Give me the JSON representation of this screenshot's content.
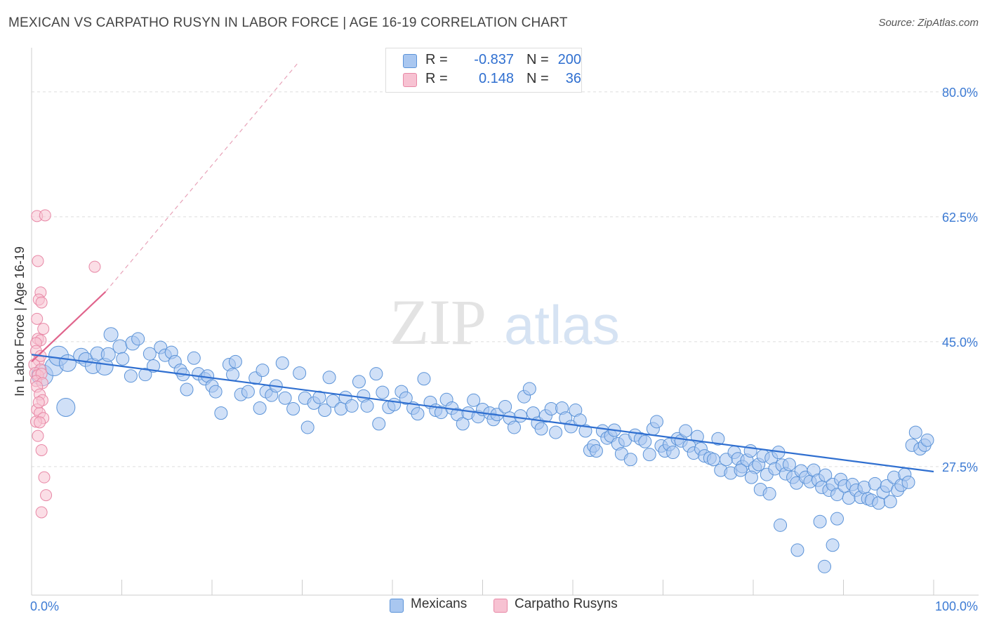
{
  "title": "MEXICAN VS CARPATHO RUSYN IN LABOR FORCE | AGE 16-19 CORRELATION CHART",
  "source": "Source: ZipAtlas.com",
  "watermark": {
    "zip": "ZIP",
    "atlas": "atlas"
  },
  "colors": {
    "blue_fill": "#a9c7f0",
    "blue_stroke": "#5b93d8",
    "blue_line": "#2f6fd0",
    "pink_fill": "#f7c2d2",
    "pink_stroke": "#e888a6",
    "pink_line": "#e0648c",
    "tick_label": "#3d7bd4",
    "grid": "#dddddd"
  },
  "legend_top": [
    {
      "swatch": "blue",
      "r_label": "R =",
      "r_value": "-0.837",
      "n_label": "N =",
      "n_value": "200"
    },
    {
      "swatch": "pink",
      "r_label": "R =",
      "r_value": "0.148",
      "n_label": "N =",
      "n_value": "36"
    }
  ],
  "legend_bottom": [
    {
      "swatch": "blue",
      "label": "Mexicans"
    },
    {
      "swatch": "pink",
      "label": "Carpatho Rusyns"
    }
  ],
  "chart_data": {
    "type": "scatter",
    "title": "MEXICAN VS CARPATHO RUSYN IN LABOR FORCE | AGE 16-19 CORRELATION CHART",
    "xlabel": "",
    "ylabel": "In Labor Force | Age 16-19",
    "xlim": [
      0,
      100
    ],
    "ylim": [
      9.5,
      85
    ],
    "y_ticks": [
      80.0,
      62.5,
      45.0,
      27.5
    ],
    "y_tick_labels": [
      "80.0%",
      "62.5%",
      "45.0%",
      "27.5%"
    ],
    "x_tick_labels": [
      "0.0%",
      "100.0%"
    ],
    "grid": true,
    "legend_placement": "top-center",
    "series": [
      {
        "name": "Mexicans",
        "color": "#a9c7f0",
        "r": -0.837,
        "n": 200,
        "trend": {
          "x": [
            0.0,
            100.0
          ],
          "y": [
            43.2,
            26.8
          ]
        },
        "points": [
          [
            1.2,
            40.3,
            15
          ],
          [
            2.5,
            41.5,
            13
          ],
          [
            3.0,
            43.0,
            14
          ],
          [
            4.0,
            42.0,
            12
          ],
          [
            3.8,
            35.8,
            13
          ],
          [
            5.5,
            43.0,
            11
          ],
          [
            6.0,
            42.5,
            10
          ],
          [
            6.8,
            41.6,
            11
          ],
          [
            7.3,
            43.3,
            10
          ],
          [
            8.1,
            41.5,
            12
          ],
          [
            8.5,
            43.2,
            10
          ],
          [
            8.8,
            46.0,
            10
          ],
          [
            9.8,
            44.3,
            10
          ],
          [
            10.1,
            42.6,
            9
          ],
          [
            11.2,
            44.8,
            10
          ],
          [
            11.0,
            40.2,
            9
          ],
          [
            11.8,
            45.4,
            9
          ],
          [
            12.6,
            40.4,
            9
          ],
          [
            13.1,
            43.3,
            9
          ],
          [
            13.5,
            41.6,
            9
          ],
          [
            14.3,
            44.2,
            9
          ],
          [
            14.8,
            43.1,
            9
          ],
          [
            15.5,
            43.5,
            9
          ],
          [
            15.9,
            42.2,
            9
          ],
          [
            16.5,
            41.0,
            9
          ],
          [
            16.8,
            40.4,
            9
          ],
          [
            17.2,
            38.3,
            9
          ],
          [
            18.0,
            42.7,
            9
          ],
          [
            18.5,
            40.5,
            9
          ],
          [
            19.2,
            39.8,
            9
          ],
          [
            19.5,
            40.2,
            9
          ],
          [
            20.0,
            38.8,
            9
          ],
          [
            20.4,
            38.0,
            9
          ],
          [
            21.0,
            35.0,
            9
          ],
          [
            21.9,
            41.8,
            9
          ],
          [
            22.6,
            42.2,
            9
          ],
          [
            22.3,
            40.4,
            9
          ],
          [
            23.2,
            37.6,
            9
          ],
          [
            24.0,
            38.0,
            9
          ],
          [
            24.8,
            39.9,
            9
          ],
          [
            25.3,
            35.7,
            9
          ],
          [
            25.6,
            41.0,
            9
          ],
          [
            26.0,
            38.0,
            9
          ],
          [
            26.6,
            37.5,
            9
          ],
          [
            27.1,
            38.8,
            9
          ],
          [
            27.8,
            42.0,
            9
          ],
          [
            28.1,
            37.1,
            9
          ],
          [
            29.0,
            35.6,
            9
          ],
          [
            29.7,
            40.6,
            9
          ],
          [
            30.3,
            37.1,
            9
          ],
          [
            30.6,
            33.0,
            9
          ],
          [
            31.3,
            36.4,
            9
          ],
          [
            31.9,
            37.2,
            9
          ],
          [
            32.5,
            35.4,
            9
          ],
          [
            33.0,
            40.0,
            9
          ],
          [
            33.4,
            36.7,
            9
          ],
          [
            34.3,
            35.6,
            9
          ],
          [
            34.8,
            37.2,
            9
          ],
          [
            35.5,
            36.0,
            9
          ],
          [
            36.3,
            39.4,
            9
          ],
          [
            36.8,
            37.4,
            9
          ],
          [
            37.2,
            36.0,
            9
          ],
          [
            38.2,
            40.5,
            9
          ],
          [
            38.9,
            37.9,
            9
          ],
          [
            38.5,
            33.5,
            9
          ],
          [
            39.6,
            35.8,
            9
          ],
          [
            40.2,
            36.2,
            9
          ],
          [
            41.0,
            38.0,
            9
          ],
          [
            41.5,
            37.1,
            9
          ],
          [
            42.3,
            35.7,
            9
          ],
          [
            42.8,
            34.9,
            9
          ],
          [
            43.5,
            39.8,
            9
          ],
          [
            44.2,
            36.5,
            9
          ],
          [
            44.8,
            35.4,
            9
          ],
          [
            45.4,
            35.1,
            9
          ],
          [
            46.0,
            36.9,
            9
          ],
          [
            46.6,
            35.7,
            9
          ],
          [
            47.2,
            34.8,
            9
          ],
          [
            47.8,
            33.5,
            9
          ],
          [
            48.4,
            35.0,
            9
          ],
          [
            49.0,
            36.8,
            9
          ],
          [
            49.5,
            34.5,
            9
          ],
          [
            50.0,
            35.5,
            9
          ],
          [
            50.8,
            35.0,
            9
          ],
          [
            51.2,
            34.1,
            9
          ],
          [
            51.6,
            34.8,
            9
          ],
          [
            52.5,
            35.9,
            9
          ],
          [
            53.0,
            34.3,
            9
          ],
          [
            53.5,
            33.0,
            9
          ],
          [
            54.2,
            34.6,
            9
          ],
          [
            54.6,
            37.3,
            9
          ],
          [
            55.2,
            38.4,
            9
          ],
          [
            55.6,
            35.0,
            9
          ],
          [
            56.1,
            33.6,
            9
          ],
          [
            56.5,
            32.8,
            9
          ],
          [
            57.0,
            34.6,
            9
          ],
          [
            57.6,
            35.6,
            9
          ],
          [
            58.1,
            32.3,
            9
          ],
          [
            58.8,
            35.7,
            9
          ],
          [
            59.2,
            34.3,
            9
          ],
          [
            59.8,
            33.1,
            9
          ],
          [
            60.3,
            35.4,
            9
          ],
          [
            60.8,
            34.0,
            9
          ],
          [
            61.4,
            32.5,
            9
          ],
          [
            61.9,
            29.8,
            9
          ],
          [
            62.3,
            30.4,
            9
          ],
          [
            62.6,
            29.7,
            9
          ],
          [
            63.3,
            32.5,
            9
          ],
          [
            63.8,
            31.5,
            9
          ],
          [
            64.2,
            31.8,
            9
          ],
          [
            64.6,
            32.6,
            9
          ],
          [
            65.0,
            30.7,
            9
          ],
          [
            65.4,
            29.3,
            9
          ],
          [
            65.8,
            31.2,
            9
          ],
          [
            66.4,
            28.5,
            9
          ],
          [
            66.9,
            31.9,
            9
          ],
          [
            67.5,
            31.4,
            9
          ],
          [
            68.0,
            31.0,
            9
          ],
          [
            68.5,
            29.2,
            9
          ],
          [
            68.9,
            32.8,
            9
          ],
          [
            69.3,
            33.8,
            9
          ],
          [
            69.8,
            30.4,
            9
          ],
          [
            70.2,
            29.7,
            9
          ],
          [
            70.7,
            30.6,
            9
          ],
          [
            71.1,
            29.5,
            9
          ],
          [
            71.6,
            31.4,
            9
          ],
          [
            72.0,
            31.1,
            9
          ],
          [
            72.5,
            32.5,
            9
          ],
          [
            72.9,
            30.4,
            9
          ],
          [
            73.4,
            29.4,
            9
          ],
          [
            73.8,
            31.7,
            9
          ],
          [
            74.2,
            30.0,
            9
          ],
          [
            74.6,
            29.0,
            9
          ],
          [
            75.2,
            28.7,
            9
          ],
          [
            75.6,
            28.5,
            9
          ],
          [
            76.1,
            31.4,
            9
          ],
          [
            76.4,
            27.0,
            9
          ],
          [
            77.0,
            28.5,
            9
          ],
          [
            77.5,
            26.6,
            9
          ],
          [
            77.9,
            29.5,
            9
          ],
          [
            78.3,
            28.6,
            9
          ],
          [
            78.8,
            27.5,
            9
          ],
          [
            79.3,
            28.4,
            9
          ],
          [
            79.7,
            29.7,
            9
          ],
          [
            80.2,
            27.4,
            9
          ],
          [
            80.6,
            27.8,
            9
          ],
          [
            81.1,
            29.0,
            9
          ],
          [
            81.5,
            26.4,
            9
          ],
          [
            82.0,
            28.7,
            9
          ],
          [
            82.4,
            27.2,
            9
          ],
          [
            82.8,
            29.5,
            9
          ],
          [
            83.2,
            27.7,
            9
          ],
          [
            83.6,
            26.5,
            9
          ],
          [
            84.0,
            27.8,
            9
          ],
          [
            84.4,
            26.0,
            9
          ],
          [
            84.8,
            25.2,
            9
          ],
          [
            85.3,
            26.9,
            9
          ],
          [
            85.8,
            26.0,
            9
          ],
          [
            86.3,
            25.4,
            9
          ],
          [
            86.7,
            27.0,
            9
          ],
          [
            87.2,
            25.6,
            9
          ],
          [
            87.6,
            24.6,
            9
          ],
          [
            88.0,
            26.3,
            9
          ],
          [
            88.4,
            24.2,
            9
          ],
          [
            88.8,
            25.0,
            9
          ],
          [
            89.3,
            23.6,
            9
          ],
          [
            89.7,
            25.7,
            9
          ],
          [
            90.1,
            24.8,
            9
          ],
          [
            90.6,
            23.1,
            9
          ],
          [
            91.0,
            25.0,
            9
          ],
          [
            91.4,
            24.2,
            9
          ],
          [
            91.9,
            23.2,
            9
          ],
          [
            92.3,
            24.6,
            9
          ],
          [
            92.7,
            23.0,
            9
          ],
          [
            93.1,
            22.8,
            9
          ],
          [
            93.5,
            25.1,
            9
          ],
          [
            93.9,
            22.4,
            9
          ],
          [
            94.4,
            23.9,
            9
          ],
          [
            94.8,
            24.8,
            9
          ],
          [
            95.2,
            22.6,
            9
          ],
          [
            95.6,
            26.0,
            9
          ],
          [
            96.0,
            24.2,
            9
          ],
          [
            96.4,
            24.9,
            9
          ],
          [
            96.8,
            26.4,
            9
          ],
          [
            97.2,
            25.3,
            9
          ],
          [
            97.6,
            30.5,
            9
          ],
          [
            98.0,
            32.3,
            9
          ],
          [
            98.5,
            30.0,
            9
          ],
          [
            99.0,
            30.5,
            9
          ],
          [
            99.3,
            31.2,
            9
          ],
          [
            78.6,
            27.0,
            9
          ],
          [
            79.8,
            26.0,
            9
          ],
          [
            80.8,
            24.3,
            9
          ],
          [
            81.8,
            23.7,
            9
          ],
          [
            83.0,
            19.3,
            9
          ],
          [
            84.9,
            15.8,
            9
          ],
          [
            87.4,
            19.8,
            9
          ],
          [
            89.3,
            20.2,
            9
          ],
          [
            87.9,
            13.5,
            9
          ],
          [
            88.8,
            16.5,
            9
          ]
        ]
      },
      {
        "name": "Carpatho Rusyns",
        "color": "#f7c2d2",
        "r": 0.148,
        "n": 36,
        "trend": {
          "x": [
            0.0,
            8.2
          ],
          "y": [
            42.2,
            52.0
          ]
        },
        "trend_dashed": {
          "x": [
            8.2,
            29.5
          ],
          "y": [
            52.0,
            84.0
          ]
        },
        "points": [
          [
            0.6,
            62.6,
            8
          ],
          [
            1.5,
            62.7,
            8
          ],
          [
            0.7,
            56.3,
            8
          ],
          [
            7.0,
            55.5,
            8
          ],
          [
            1.0,
            51.9,
            8
          ],
          [
            0.8,
            50.9,
            8
          ],
          [
            1.1,
            50.5,
            8
          ],
          [
            0.6,
            48.2,
            8
          ],
          [
            1.3,
            46.8,
            8
          ],
          [
            0.7,
            45.4,
            8
          ],
          [
            1.0,
            45.2,
            8
          ],
          [
            0.5,
            44.8,
            8
          ],
          [
            0.5,
            43.7,
            8
          ],
          [
            0.8,
            42.4,
            8
          ],
          [
            0.3,
            41.8,
            8
          ],
          [
            1.0,
            41.1,
            8
          ],
          [
            0.4,
            40.6,
            8
          ],
          [
            0.7,
            40.3,
            8
          ],
          [
            1.1,
            40.5,
            8
          ],
          [
            0.5,
            39.5,
            8
          ],
          [
            1.2,
            39.2,
            8
          ],
          [
            0.6,
            38.7,
            8
          ],
          [
            0.9,
            37.6,
            8
          ],
          [
            1.2,
            36.8,
            8
          ],
          [
            0.6,
            35.5,
            8
          ],
          [
            0.9,
            35.0,
            8
          ],
          [
            1.3,
            34.3,
            8
          ],
          [
            0.5,
            33.8,
            8
          ],
          [
            0.9,
            33.7,
            8
          ],
          [
            0.7,
            31.8,
            8
          ],
          [
            1.1,
            29.8,
            8
          ],
          [
            1.4,
            26.0,
            8
          ],
          [
            1.6,
            23.5,
            8
          ],
          [
            1.1,
            21.1,
            8
          ],
          [
            0.8,
            36.5,
            8
          ],
          [
            1.0,
            43.0,
            8
          ]
        ]
      }
    ]
  }
}
